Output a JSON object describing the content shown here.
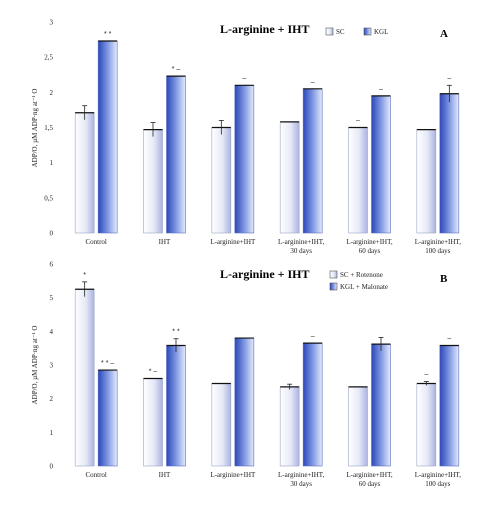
{
  "chart_data": [
    {
      "type": "bar",
      "title": "L-arginine + IHT",
      "panel_label": "A",
      "ylabel": "ADP/O, µM ADP·ng at⁻¹ O",
      "ylim": [
        0,
        3
      ],
      "yticks": [
        "0",
        "0,5",
        "1",
        "1,5",
        "2",
        "2,5",
        "3"
      ],
      "legend_position": "top-right",
      "categories": [
        [
          "Control"
        ],
        [
          "IHT"
        ],
        [
          "L-arginine+IHT"
        ],
        [
          "L-arginine+IHT,",
          "30 days"
        ],
        [
          "L-arginine+IHT,",
          "60 days"
        ],
        [
          "L-arginine+IHT,",
          "100 days"
        ]
      ],
      "series": [
        {
          "name": "SC",
          "values": [
            1.71,
            1.47,
            1.5,
            1.58,
            1.5,
            1.47
          ],
          "errors": [
            0.1,
            0.1,
            0.1,
            0,
            0,
            0
          ],
          "marks": [
            "",
            "",
            "",
            "",
            "–",
            ""
          ]
        },
        {
          "name": "KGL",
          "values": [
            2.73,
            2.23,
            2.1,
            2.05,
            1.95,
            1.98
          ],
          "errors": [
            0,
            0,
            0,
            0,
            0,
            0.12
          ],
          "marks": [
            "* *",
            "* –",
            "–",
            "–",
            "–",
            "–"
          ]
        }
      ]
    },
    {
      "type": "bar",
      "title": "L-arginine + IHT",
      "panel_label": "B",
      "ylabel": "ADP/O, µM ADP·ng at⁻¹ O",
      "ylim": [
        0,
        6
      ],
      "yticks": [
        "0",
        "1",
        "2",
        "3",
        "4",
        "5",
        "6"
      ],
      "legend_position": "top-right",
      "categories": [
        [
          "Control"
        ],
        [
          "IHT"
        ],
        [
          "L-arginine+IHT"
        ],
        [
          "L-arginine+IHT,",
          "30 days"
        ],
        [
          "L-arginine+IHT,",
          "60 days"
        ],
        [
          "L-arginine+IHT,",
          "100 days"
        ]
      ],
      "series": [
        {
          "name": "SC + Rotenone",
          "values": [
            5.25,
            2.6,
            2.45,
            2.35,
            2.35,
            2.45
          ],
          "errors": [
            0.22,
            0,
            0,
            0.08,
            0,
            0.06
          ],
          "marks": [
            "*",
            "* –",
            "",
            "",
            "",
            "–"
          ]
        },
        {
          "name": "KGL + Malonate",
          "values": [
            2.85,
            3.58,
            3.8,
            3.65,
            3.62,
            3.58
          ],
          "errors": [
            0,
            0.2,
            0,
            0,
            0.2,
            0
          ],
          "marks": [
            "* * –",
            "* *",
            "",
            "–",
            "",
            "–"
          ]
        }
      ]
    }
  ]
}
